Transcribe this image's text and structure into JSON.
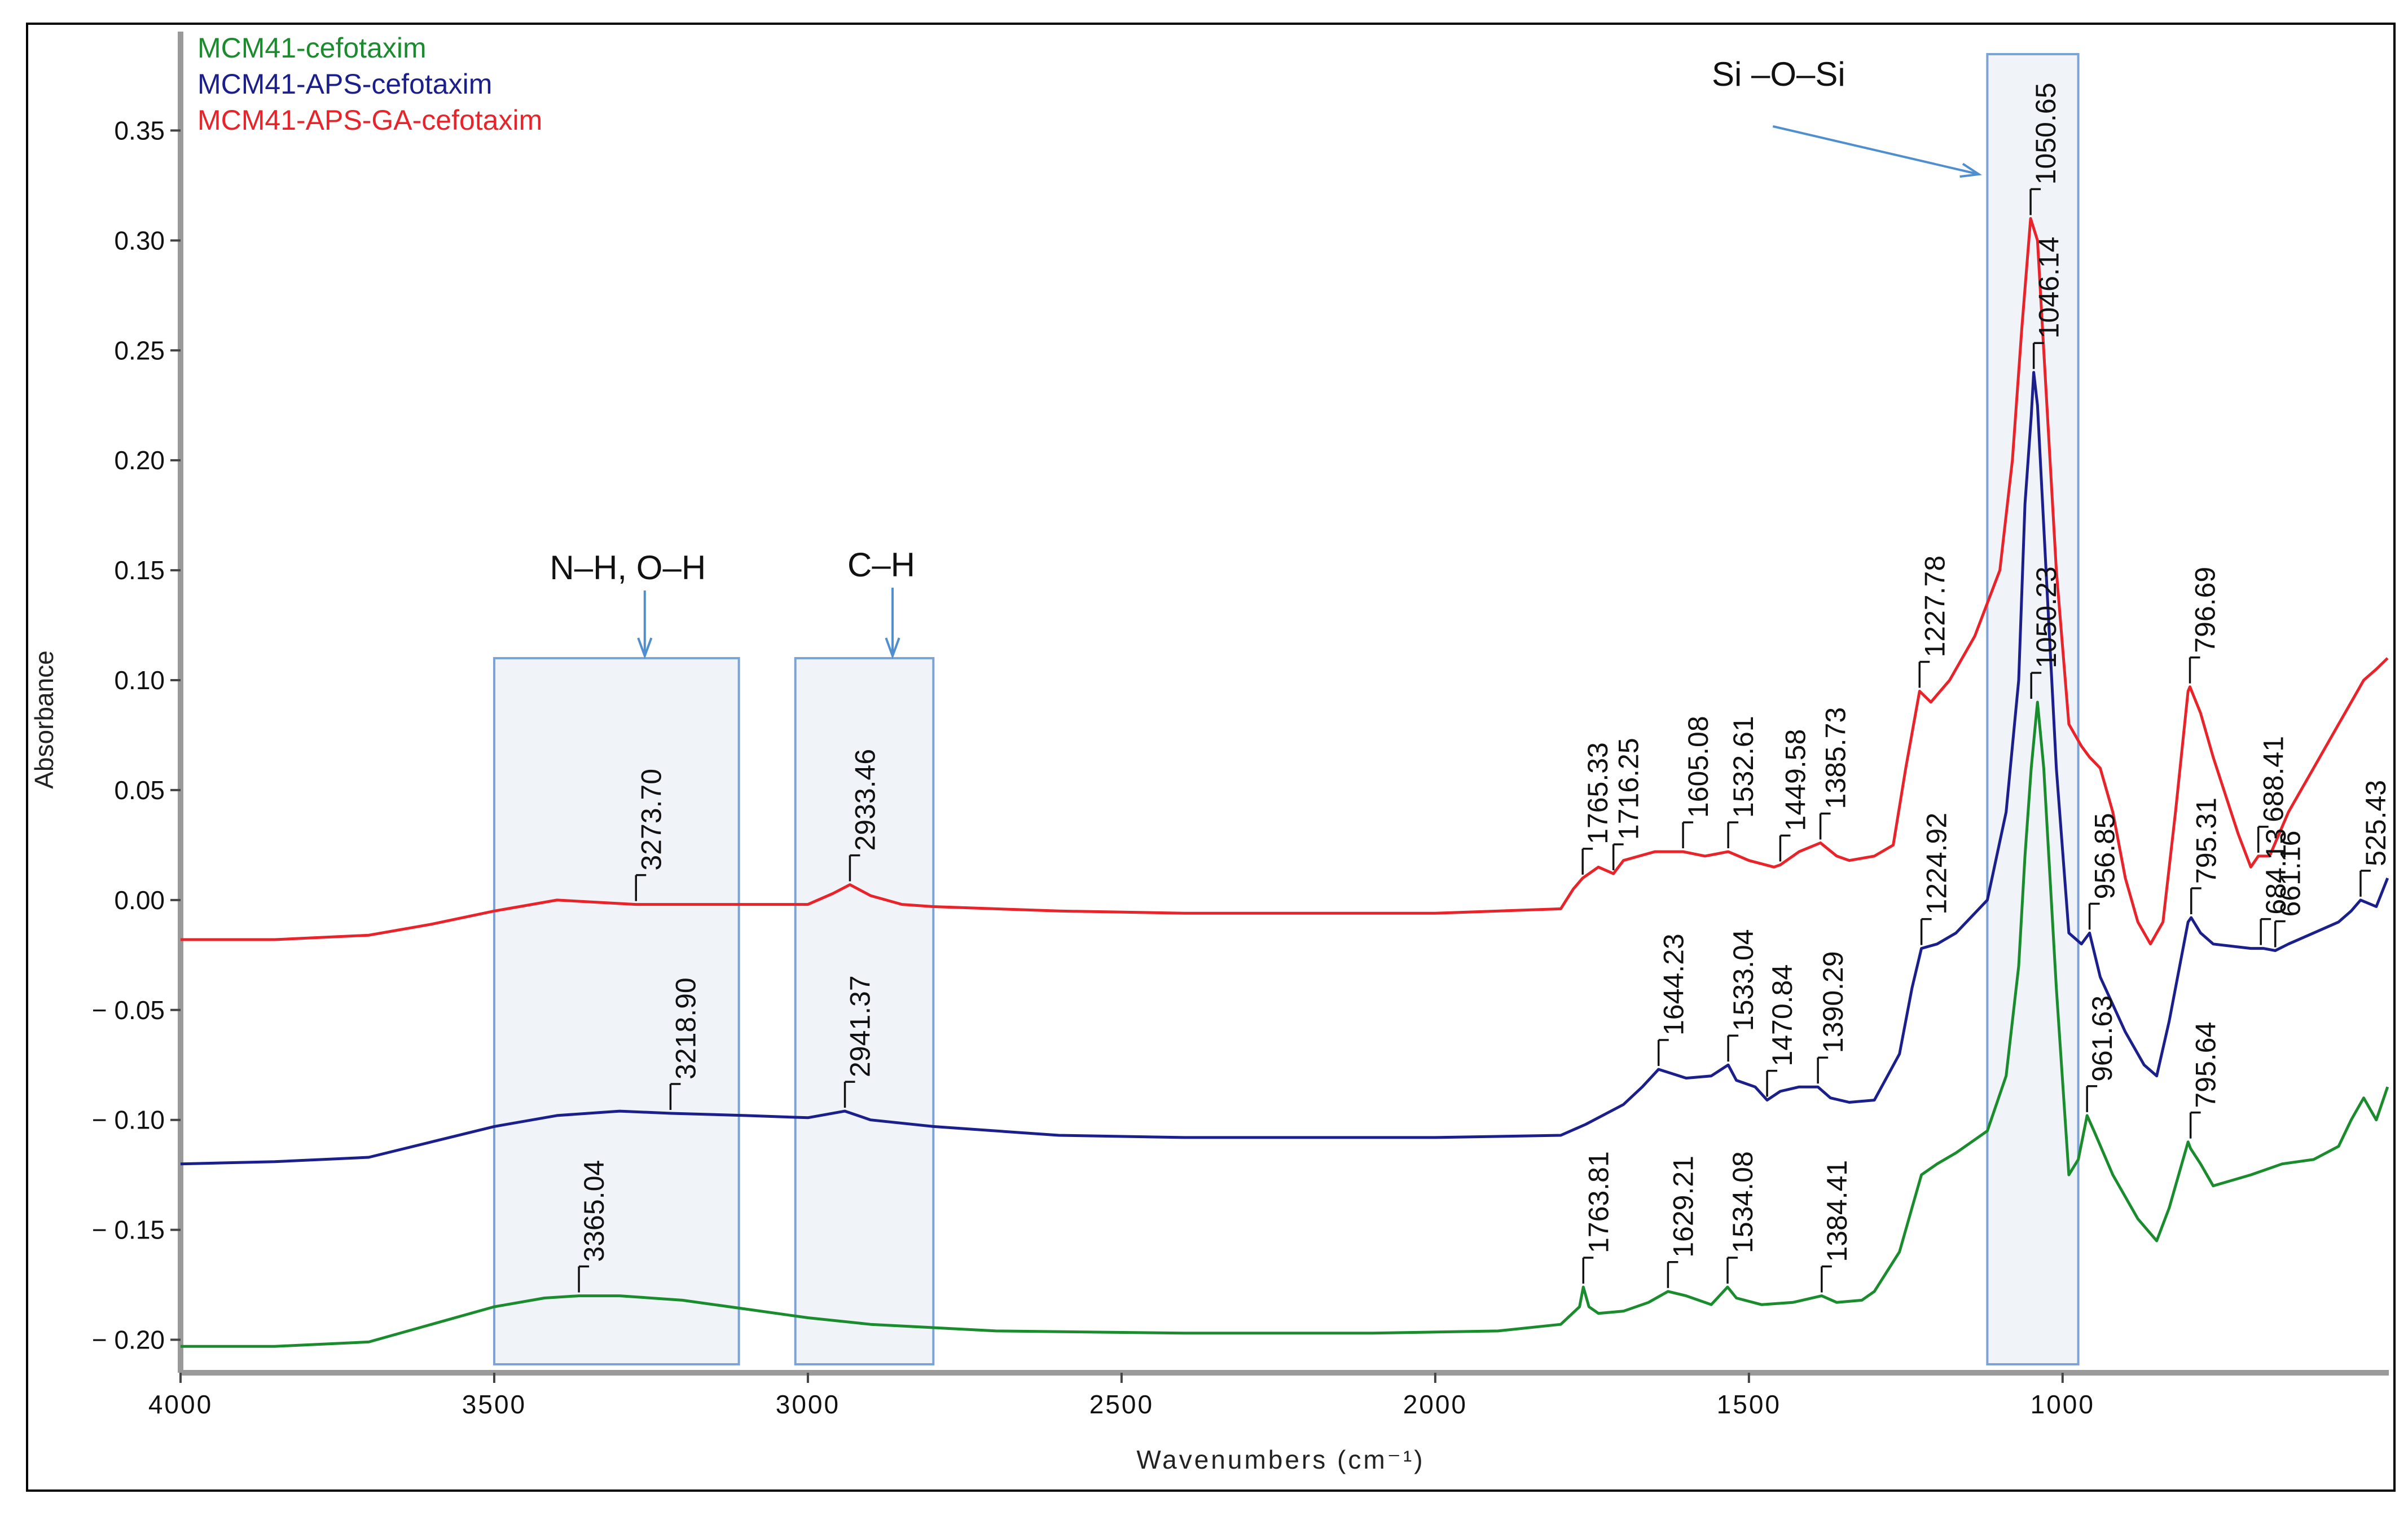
{
  "chart_data": {
    "type": "line",
    "title": "",
    "xlabel": "Wavenumbers (cm⁻¹)",
    "ylabel": "Absorbance",
    "xlim": [
      4000,
      480
    ],
    "ylim": [
      -0.215,
      0.395
    ],
    "x_ticks": [
      4000,
      3500,
      3000,
      2500,
      2000,
      1500,
      1000
    ],
    "x_tick_labels": [
      "4000",
      "3500",
      "3000",
      "2500",
      "2000",
      "1500",
      "1000"
    ],
    "y_ticks": [
      0.35,
      0.3,
      0.25,
      0.2,
      0.15,
      0.1,
      0.05,
      0.0,
      -0.05,
      -0.1,
      -0.15,
      -0.2
    ],
    "y_tick_labels": [
      "0.35",
      "0.30",
      "0.25",
      "0.20",
      "0.15",
      "0.10",
      "0.05",
      "0.00",
      "− 0.05",
      "− 0.10",
      "− 0.15",
      "− 0.20"
    ],
    "legend": {
      "placement": "top-left"
    },
    "series": [
      {
        "name": "MCM41-cefotaxim",
        "color": "#1a8c2e",
        "x": [
          4000,
          3850,
          3700,
          3600,
          3500,
          3420,
          3365,
          3300,
          3200,
          3100,
          3000,
          2900,
          2700,
          2400,
          2100,
          1900,
          1800,
          1770,
          1764,
          1755,
          1740,
          1700,
          1660,
          1629,
          1600,
          1560,
          1534,
          1520,
          1480,
          1430,
          1384,
          1360,
          1320,
          1300,
          1260,
          1240,
          1225,
          1200,
          1170,
          1120,
          1090,
          1070,
          1060,
          1050,
          1040,
          1030,
          1010,
          990,
          975,
          961,
          950,
          920,
          880,
          850,
          830,
          800,
          796,
          780,
          760,
          700,
          650,
          600,
          560,
          540,
          520,
          500,
          482
        ],
        "y": [
          -0.203,
          -0.203,
          -0.201,
          -0.193,
          -0.185,
          -0.181,
          -0.18,
          -0.18,
          -0.182,
          -0.186,
          -0.19,
          -0.193,
          -0.196,
          -0.197,
          -0.197,
          -0.196,
          -0.193,
          -0.185,
          -0.176,
          -0.185,
          -0.188,
          -0.187,
          -0.183,
          -0.178,
          -0.18,
          -0.184,
          -0.176,
          -0.181,
          -0.184,
          -0.183,
          -0.18,
          -0.183,
          -0.182,
          -0.178,
          -0.16,
          -0.14,
          -0.125,
          -0.12,
          -0.115,
          -0.105,
          -0.08,
          -0.03,
          0.02,
          0.06,
          0.09,
          0.06,
          -0.04,
          -0.125,
          -0.118,
          -0.098,
          -0.105,
          -0.125,
          -0.145,
          -0.155,
          -0.14,
          -0.11,
          -0.113,
          -0.12,
          -0.13,
          -0.125,
          -0.12,
          -0.118,
          -0.112,
          -0.1,
          -0.09,
          -0.1,
          -0.085
        ]
      },
      {
        "name": "MCM41-APS-cefotaxim",
        "color": "#1b1f8c",
        "x": [
          4000,
          3850,
          3700,
          3600,
          3500,
          3400,
          3300,
          3219,
          3100,
          3000,
          2941,
          2900,
          2800,
          2600,
          2400,
          2200,
          2000,
          1800,
          1760,
          1700,
          1670,
          1644,
          1600,
          1560,
          1533,
          1520,
          1490,
          1471,
          1450,
          1420,
          1390,
          1370,
          1340,
          1300,
          1260,
          1240,
          1225,
          1200,
          1170,
          1120,
          1090,
          1070,
          1060,
          1050,
          1046,
          1040,
          1030,
          1010,
          990,
          970,
          957,
          940,
          900,
          870,
          850,
          830,
          800,
          795,
          780,
          760,
          700,
          680,
          661,
          640,
          600,
          560,
          540,
          525,
          500,
          482
        ],
        "y": [
          -0.12,
          -0.119,
          -0.117,
          -0.11,
          -0.103,
          -0.098,
          -0.096,
          -0.097,
          -0.098,
          -0.099,
          -0.096,
          -0.1,
          -0.103,
          -0.107,
          -0.108,
          -0.108,
          -0.108,
          -0.107,
          -0.102,
          -0.093,
          -0.085,
          -0.077,
          -0.081,
          -0.08,
          -0.075,
          -0.082,
          -0.085,
          -0.091,
          -0.087,
          -0.085,
          -0.085,
          -0.09,
          -0.092,
          -0.091,
          -0.07,
          -0.04,
          -0.022,
          -0.02,
          -0.015,
          0.0,
          0.04,
          0.1,
          0.18,
          0.22,
          0.24,
          0.225,
          0.17,
          0.06,
          -0.015,
          -0.02,
          -0.015,
          -0.035,
          -0.06,
          -0.075,
          -0.08,
          -0.055,
          -0.01,
          -0.008,
          -0.015,
          -0.02,
          -0.022,
          -0.022,
          -0.023,
          -0.02,
          -0.015,
          -0.01,
          -0.005,
          0.0,
          -0.003,
          0.01
        ]
      },
      {
        "name": "MCM41-APS-GA-cefotaxim",
        "color": "#e8232a",
        "x": [
          4000,
          3850,
          3700,
          3600,
          3500,
          3400,
          3274,
          3100,
          3000,
          2960,
          2933,
          2900,
          2850,
          2800,
          2600,
          2400,
          2200,
          2000,
          1800,
          1780,
          1765,
          1740,
          1716,
          1700,
          1650,
          1605,
          1570,
          1533,
          1500,
          1460,
          1450,
          1420,
          1386,
          1360,
          1340,
          1300,
          1270,
          1250,
          1228,
          1210,
          1180,
          1140,
          1100,
          1080,
          1065,
          1051,
          1040,
          1030,
          1010,
          990,
          970,
          957,
          940,
          920,
          900,
          880,
          860,
          840,
          820,
          800,
          797,
          780,
          760,
          720,
          700,
          688,
          670,
          640,
          600,
          560,
          540,
          520,
          500,
          482
        ],
        "y": [
          -0.018,
          -0.018,
          -0.016,
          -0.011,
          -0.005,
          0.0,
          -0.002,
          -0.002,
          -0.002,
          0.003,
          0.007,
          0.002,
          -0.002,
          -0.003,
          -0.005,
          -0.006,
          -0.006,
          -0.006,
          -0.004,
          0.005,
          0.01,
          0.015,
          0.012,
          0.018,
          0.022,
          0.022,
          0.02,
          0.022,
          0.018,
          0.015,
          0.016,
          0.022,
          0.026,
          0.02,
          0.018,
          0.02,
          0.025,
          0.06,
          0.095,
          0.09,
          0.1,
          0.12,
          0.15,
          0.2,
          0.26,
          0.31,
          0.3,
          0.25,
          0.15,
          0.08,
          0.07,
          0.065,
          0.06,
          0.04,
          0.01,
          -0.01,
          -0.02,
          -0.01,
          0.04,
          0.095,
          0.097,
          0.085,
          0.065,
          0.03,
          0.015,
          0.02,
          0.02,
          0.04,
          0.06,
          0.08,
          0.09,
          0.1,
          0.105,
          0.11
        ]
      }
    ],
    "peaks": [
      {
        "label": "3365.04",
        "x": 3365,
        "y": -0.18,
        "color": "#1a8c2e"
      },
      {
        "label": "1763.81",
        "x": 1764,
        "y": -0.176,
        "color": "#1a8c2e"
      },
      {
        "label": "1629.21",
        "x": 1629,
        "y": -0.178,
        "color": "#1a8c2e"
      },
      {
        "label": "1534.08",
        "x": 1534,
        "y": -0.176,
        "color": "#1a8c2e"
      },
      {
        "label": "1384.41",
        "x": 1384,
        "y": -0.18,
        "color": "#1a8c2e"
      },
      {
        "label": "1050.23",
        "x": 1050,
        "y": 0.09,
        "color": "#1a8c2e"
      },
      {
        "label": "961.63",
        "x": 961,
        "y": -0.098,
        "color": "#1a8c2e"
      },
      {
        "label": "795.64",
        "x": 796,
        "y": -0.11,
        "color": "#1a8c2e"
      },
      {
        "label": "3218.90",
        "x": 3219,
        "y": -0.097,
        "color": "#1b1f8c"
      },
      {
        "label": "2941.37",
        "x": 2941,
        "y": -0.096,
        "color": "#1b1f8c"
      },
      {
        "label": "1644.23",
        "x": 1644,
        "y": -0.077,
        "color": "#1b1f8c"
      },
      {
        "label": "1533.04",
        "x": 1533,
        "y": -0.075,
        "color": "#1b1f8c"
      },
      {
        "label": "1470.84",
        "x": 1471,
        "y": -0.091,
        "color": "#1b1f8c"
      },
      {
        "label": "1390.29",
        "x": 1390,
        "y": -0.085,
        "color": "#1b1f8c"
      },
      {
        "label": "1224.92",
        "x": 1225,
        "y": -0.022,
        "color": "#1b1f8c"
      },
      {
        "label": "1046.14",
        "x": 1046,
        "y": 0.24,
        "color": "#1b1f8c"
      },
      {
        "label": "956.85",
        "x": 957,
        "y": -0.015,
        "color": "#1b1f8c"
      },
      {
        "label": "795.31",
        "x": 795,
        "y": -0.008,
        "color": "#1b1f8c"
      },
      {
        "label": "661.16",
        "x": 661,
        "y": -0.023,
        "color": "#1b1f8c"
      },
      {
        "label": "525.43",
        "x": 525,
        "y": 0.0,
        "color": "#1b1f8c"
      },
      {
        "label": "3273.70",
        "x": 3274,
        "y": -0.002,
        "color": "#e8232a"
      },
      {
        "label": "2933.46",
        "x": 2933,
        "y": 0.007,
        "color": "#e8232a"
      },
      {
        "label": "1765.33",
        "x": 1765,
        "y": 0.01,
        "color": "#e8232a"
      },
      {
        "label": "1716.25",
        "x": 1716,
        "y": 0.012,
        "color": "#e8232a"
      },
      {
        "label": "1605.08",
        "x": 1605,
        "y": 0.022,
        "color": "#e8232a"
      },
      {
        "label": "1532.61",
        "x": 1533,
        "y": 0.022,
        "color": "#e8232a"
      },
      {
        "label": "1449.58",
        "x": 1450,
        "y": 0.016,
        "color": "#e8232a"
      },
      {
        "label": "1385.73",
        "x": 1386,
        "y": 0.026,
        "color": "#e8232a"
      },
      {
        "label": "1227.78",
        "x": 1228,
        "y": 0.095,
        "color": "#e8232a"
      },
      {
        "label": "1050.65",
        "x": 1051,
        "y": 0.31,
        "color": "#e8232a"
      },
      {
        "label": "796.69",
        "x": 797,
        "y": 0.097,
        "color": "#e8232a"
      },
      {
        "label": "688.41",
        "x": 688,
        "y": 0.02,
        "color": "#e8232a"
      },
      {
        "label": "684.13",
        "x": 684,
        "y": -0.022,
        "color": "#1b1f8c"
      }
    ],
    "regions": [
      {
        "label": "N–H, O–H",
        "x_start": 3500,
        "x_end": 3110
      },
      {
        "label": "C–H",
        "x_start": 3020,
        "x_end": 2800
      },
      {
        "label": "Si –O–Si",
        "x_start": 1120,
        "x_end": 975
      }
    ]
  }
}
